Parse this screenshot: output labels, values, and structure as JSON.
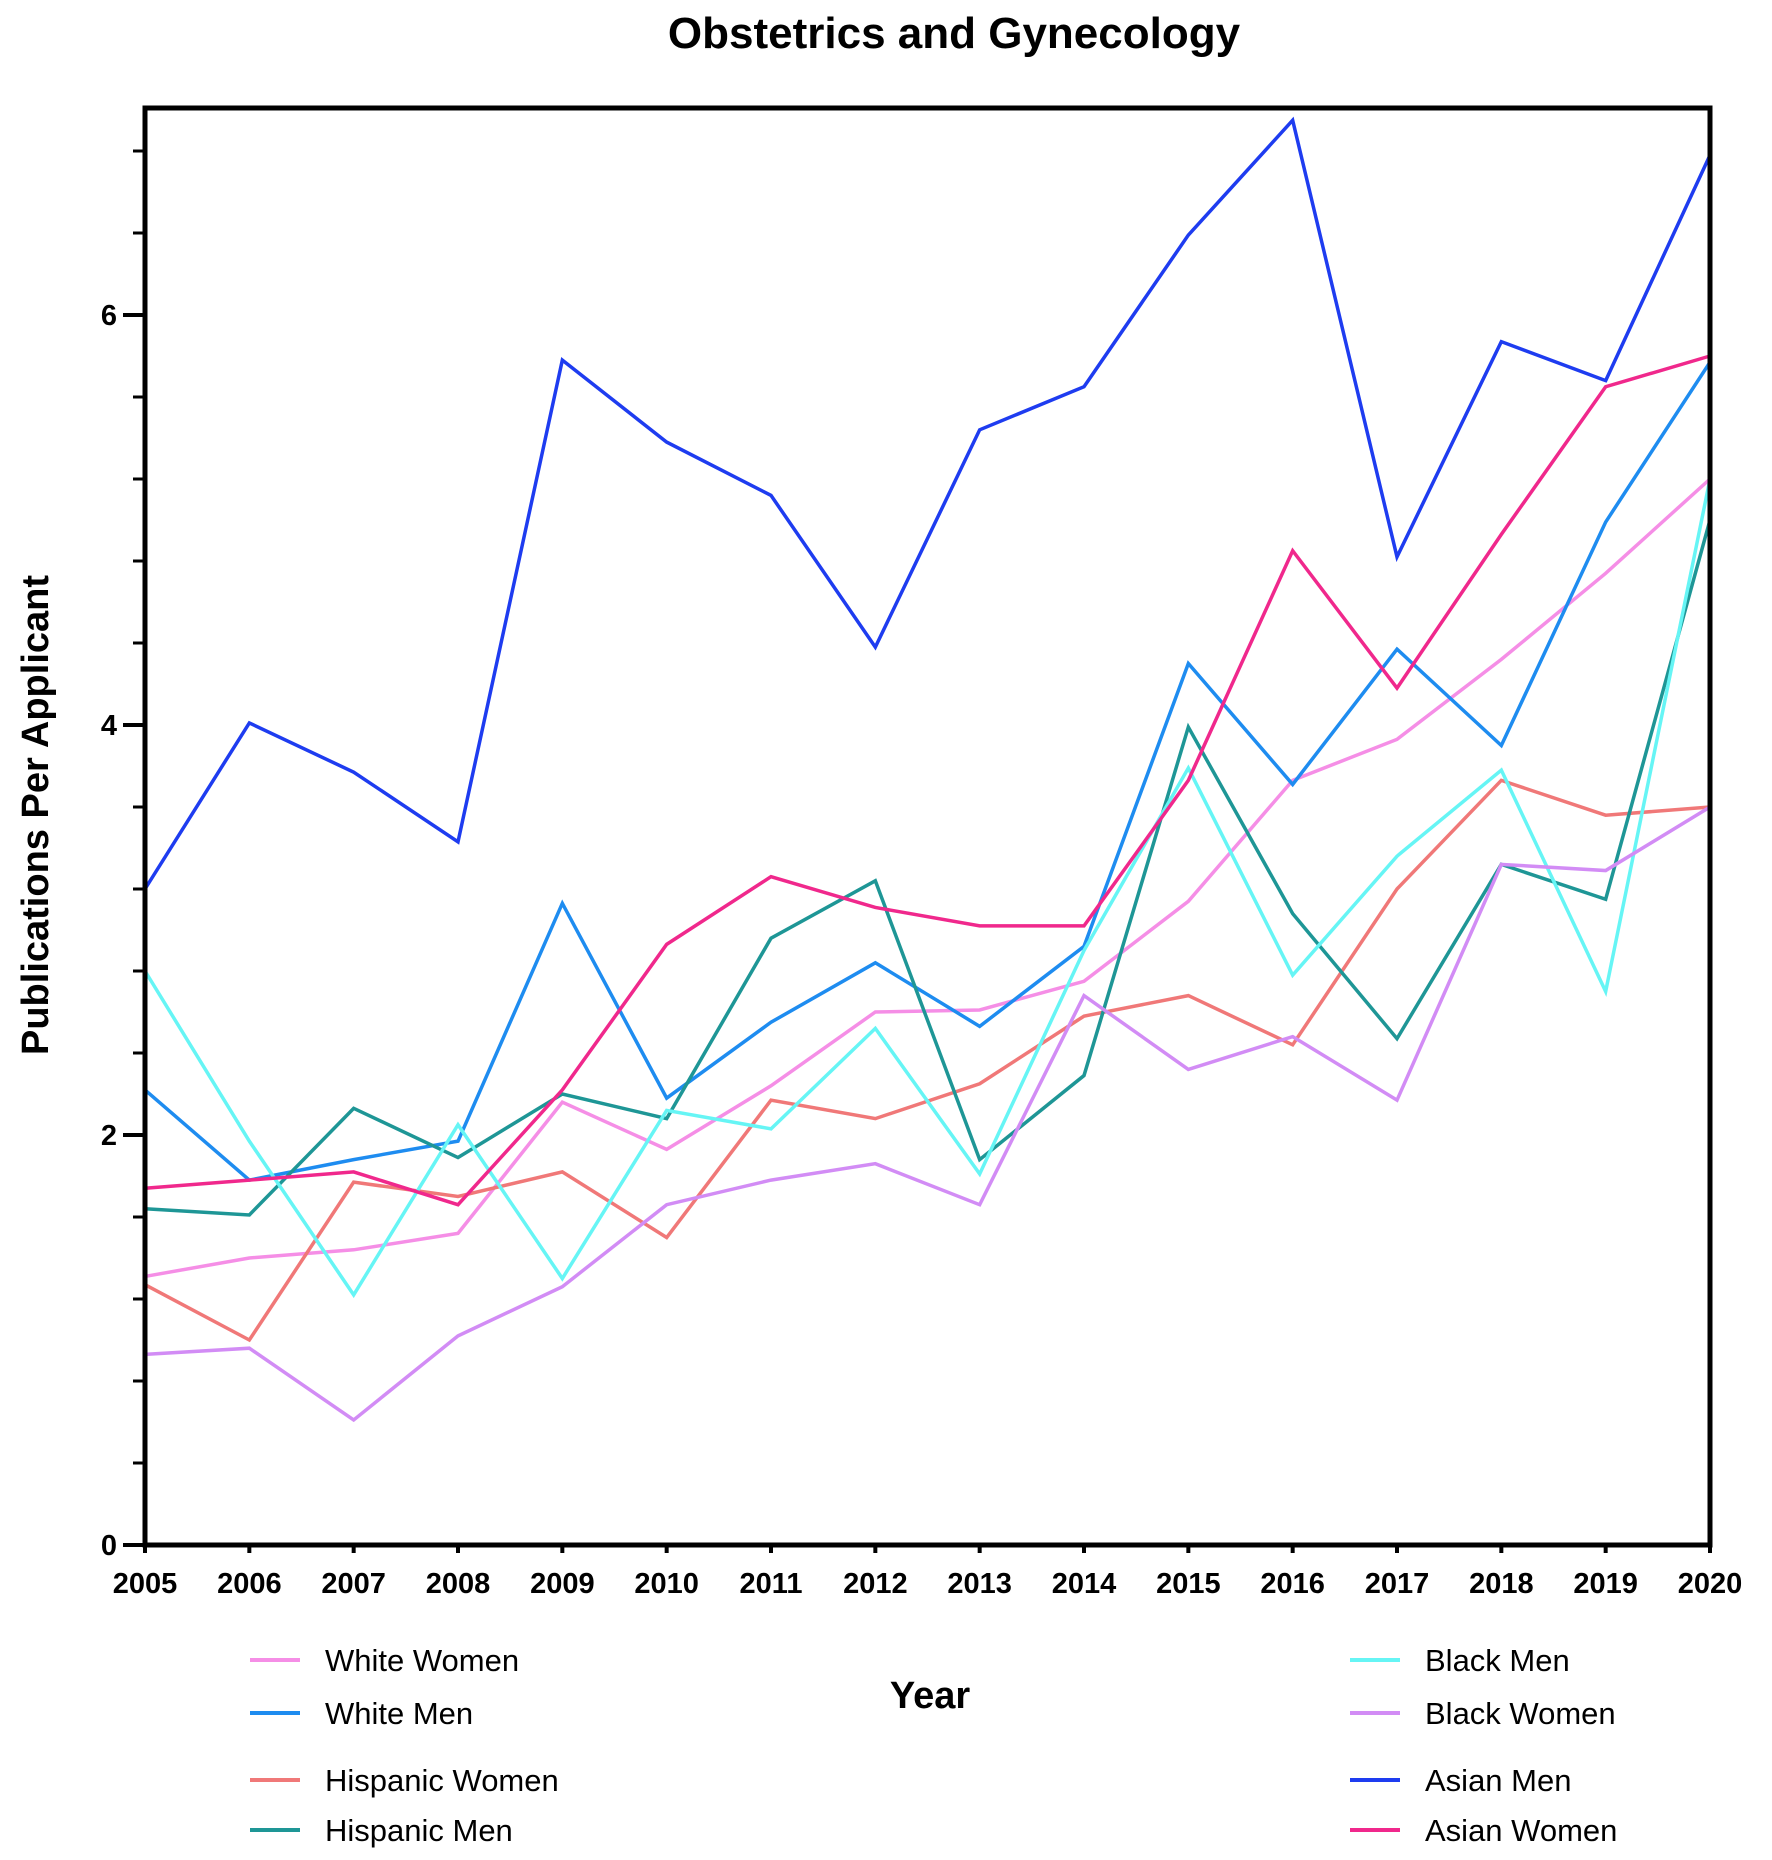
{
  "chart_data": {
    "type": "line",
    "title": "Obstetrics and Gynecology",
    "xlabel": "Year",
    "ylabel": "Publications Per Applicant",
    "x": [
      2005,
      2006,
      2007,
      2008,
      2009,
      2010,
      2011,
      2012,
      2013,
      2014,
      2015,
      2016,
      2017,
      2018,
      2019,
      2020
    ],
    "x_tick_labels": [
      "2005",
      "2006",
      "2007",
      "2008",
      "2009",
      "2010",
      "2011",
      "2012",
      "2013",
      "2014",
      "2015",
      "2016",
      "2017",
      "2018",
      "2019",
      "2020"
    ],
    "ylim": [
      0,
      7
    ],
    "y_ticks": [
      0,
      2,
      4,
      6
    ],
    "y_tick_labels": [
      "0",
      "2",
      "4",
      "6"
    ],
    "y_minor_step": 0.4,
    "grid": false,
    "legend_position": "bottom",
    "series": [
      {
        "name": "White Women",
        "color": "#f58ee6",
        "legend_col": 0,
        "legend_row": 0,
        "values": [
          1.31,
          1.4,
          1.44,
          1.52,
          2.16,
          1.93,
          2.24,
          2.6,
          2.61,
          2.75,
          3.14,
          3.73,
          3.93,
          4.32,
          4.74,
          5.2
        ]
      },
      {
        "name": "White Men",
        "color": "#1e8cf0",
        "legend_col": 0,
        "legend_row": 1,
        "values": [
          2.22,
          1.78,
          1.88,
          1.97,
          3.13,
          2.18,
          2.55,
          2.84,
          2.53,
          2.92,
          4.3,
          3.71,
          4.37,
          3.9,
          4.99,
          5.77
        ]
      },
      {
        "name": "Hispanic Women",
        "color": "#f07878",
        "legend_col": 0,
        "legend_row": 2,
        "values": [
          1.27,
          1.0,
          1.77,
          1.7,
          1.82,
          1.5,
          2.17,
          2.08,
          2.25,
          2.58,
          2.68,
          2.44,
          3.2,
          3.73,
          3.56,
          3.6
        ]
      },
      {
        "name": "Hispanic Men",
        "color": "#1e9696",
        "legend_col": 0,
        "legend_row": 3,
        "values": [
          1.64,
          1.61,
          2.13,
          1.89,
          2.2,
          2.08,
          2.96,
          3.24,
          1.88,
          2.29,
          3.99,
          3.08,
          2.47,
          3.32,
          3.15,
          5.0
        ]
      },
      {
        "name": "Black Men",
        "color": "#66f5f5",
        "legend_col": 1,
        "legend_row": 0,
        "values": [
          2.8,
          1.97,
          1.22,
          2.05,
          1.3,
          2.12,
          2.03,
          2.52,
          1.81,
          2.9,
          3.79,
          2.78,
          3.36,
          3.78,
          2.7,
          5.2
        ]
      },
      {
        "name": "Black Women",
        "color": "#d28cf5",
        "legend_col": 1,
        "legend_row": 1,
        "values": [
          0.93,
          0.96,
          0.61,
          1.02,
          1.26,
          1.66,
          1.78,
          1.86,
          1.66,
          2.68,
          2.32,
          2.48,
          2.17,
          3.32,
          3.29,
          3.6
        ]
      },
      {
        "name": "Asian Men",
        "color": "#1e3cf0",
        "legend_col": 1,
        "legend_row": 2,
        "values": [
          3.2,
          4.01,
          3.77,
          3.43,
          5.78,
          5.38,
          5.12,
          4.38,
          5.44,
          5.65,
          6.39,
          6.95,
          4.82,
          5.87,
          5.68,
          6.78
        ]
      },
      {
        "name": "Asian Women",
        "color": "#f0288c",
        "legend_col": 1,
        "legend_row": 3,
        "values": [
          1.74,
          1.78,
          1.82,
          1.66,
          2.22,
          2.93,
          3.26,
          3.11,
          3.02,
          3.02,
          3.73,
          4.85,
          4.18,
          4.93,
          5.65,
          5.8
        ]
      }
    ]
  }
}
